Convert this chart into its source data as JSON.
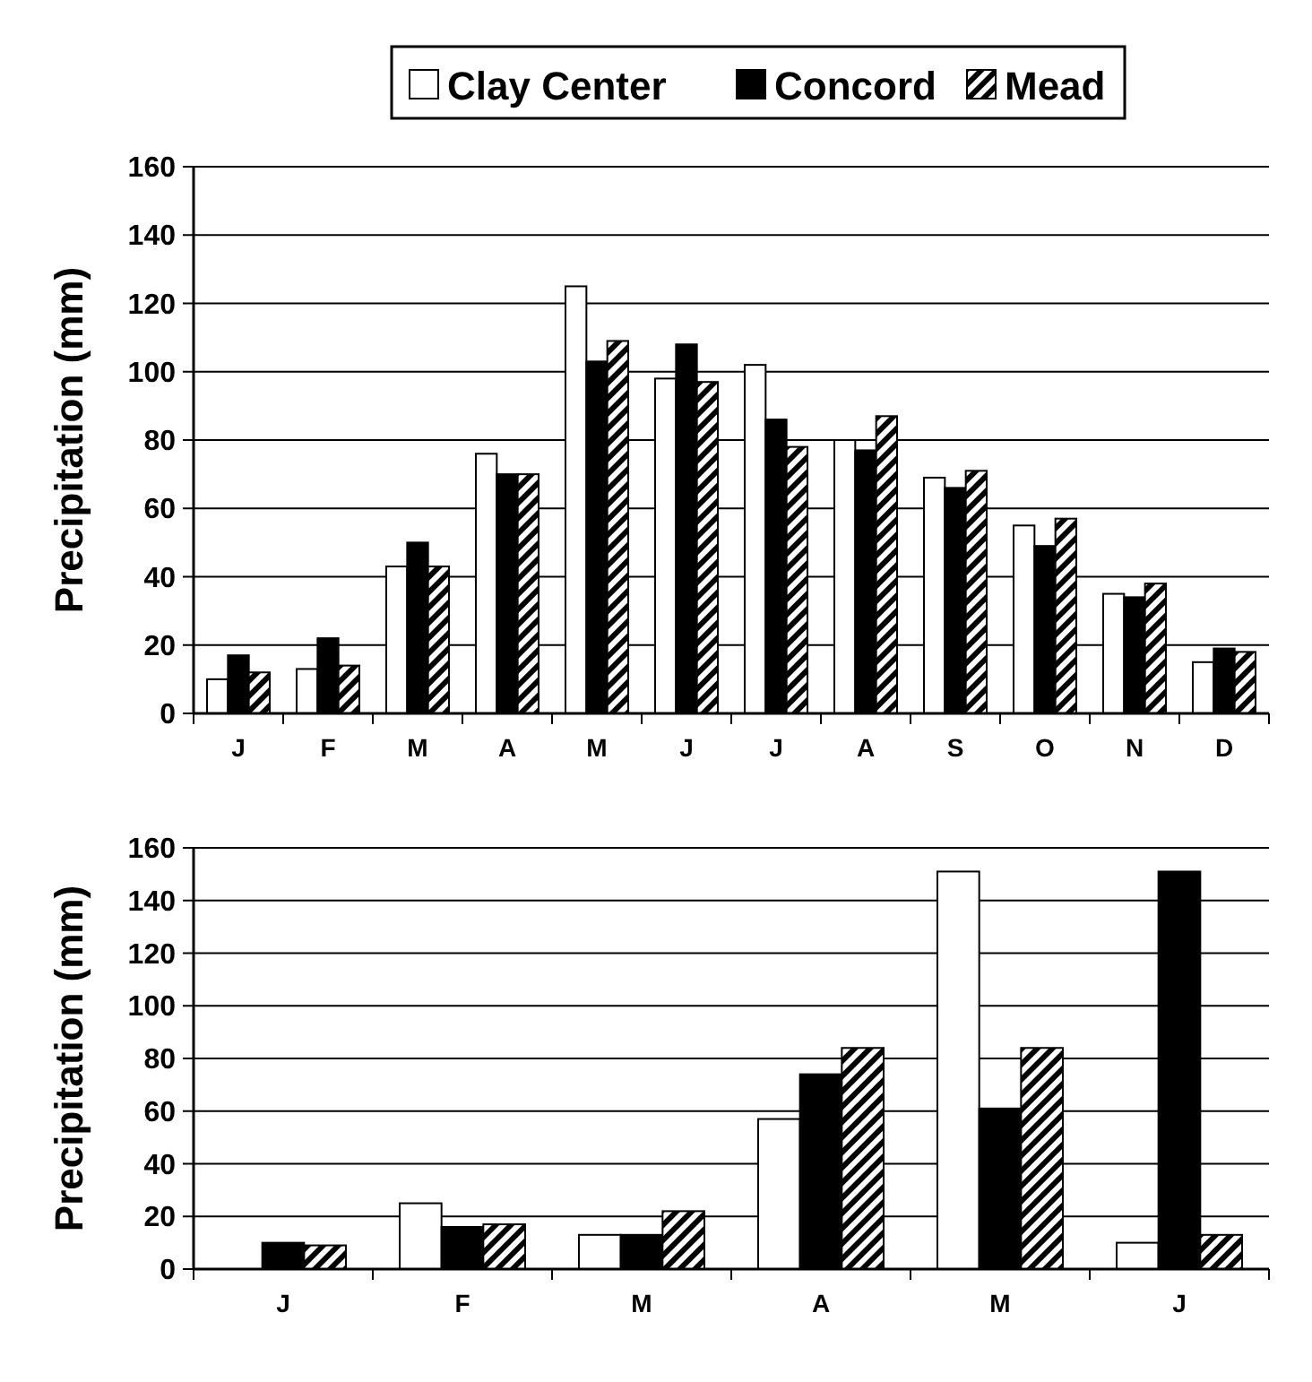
{
  "chart_data": [
    {
      "type": "bar",
      "ylabel": "Precipitation (mm)",
      "categories": [
        "J",
        "F",
        "M",
        "A",
        "M",
        "J",
        "J",
        "A",
        "S",
        "O",
        "N",
        "D"
      ],
      "series": [
        {
          "name": "Clay Center",
          "color": "#ffffff",
          "values": [
            10,
            13,
            43,
            76,
            125,
            98,
            102,
            80,
            69,
            55,
            35,
            15
          ]
        },
        {
          "name": "Concord",
          "color": "#000000",
          "values": [
            17,
            22,
            50,
            70,
            103,
            108,
            86,
            77,
            66,
            49,
            34,
            19
          ]
        },
        {
          "name": "Mead",
          "color": "#000000",
          "values": [
            12,
            14,
            43,
            70,
            109,
            97,
            78,
            87,
            71,
            57,
            38,
            18
          ]
        }
      ],
      "ylim": [
        0,
        160
      ],
      "yticks": [
        0,
        20,
        40,
        60,
        80,
        100,
        120,
        140,
        160
      ],
      "grid": "y",
      "legend": "top"
    },
    {
      "type": "bar",
      "ylabel": "Precipitation (mm)",
      "categories": [
        "J",
        "F",
        "M",
        "A",
        "M",
        "J"
      ],
      "series": [
        {
          "color": "#ffffff",
          "values": [
            0,
            25,
            13,
            57,
            151,
            10
          ]
        },
        {
          "color": "#000000",
          "values": [
            10,
            16,
            13,
            74,
            61,
            151
          ]
        },
        {
          "color": "#000000",
          "values": [
            9,
            17,
            22,
            84,
            84,
            13
          ]
        }
      ],
      "ylim": [
        0,
        160
      ],
      "yticks": [
        0,
        20,
        40,
        60,
        80,
        100,
        120,
        140,
        160
      ],
      "grid": "y"
    }
  ]
}
